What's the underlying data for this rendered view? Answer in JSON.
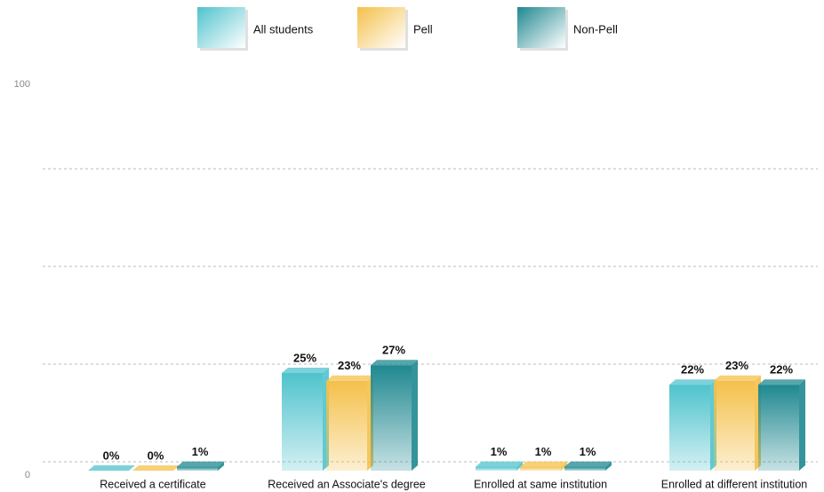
{
  "chart_data": {
    "type": "bar3d",
    "categories": [
      "Received a certificate",
      "Received an Associate's degree",
      "Enrolled at same institution",
      "Enrolled at different institution"
    ],
    "series": [
      {
        "name": "All students",
        "color": "#4fc3cd",
        "values": [
          0,
          25,
          1,
          22
        ],
        "value_labels": [
          "0%",
          "25%",
          "1%",
          "22%"
        ]
      },
      {
        "name": "Pell",
        "color": "#f4c04a",
        "values": [
          0,
          23,
          1,
          23
        ],
        "value_labels": [
          "0%",
          "23%",
          "1%",
          "23%"
        ]
      },
      {
        "name": "Non-Pell",
        "color": "#1f8890",
        "values": [
          1,
          27,
          1,
          22
        ],
        "value_labels": [
          "1%",
          "27%",
          "1%",
          "22%"
        ]
      }
    ],
    "ylim": [
      0,
      100
    ],
    "yticks": [
      0,
      100
    ],
    "gridlines": [
      0,
      25,
      50,
      75
    ],
    "legend": "top"
  }
}
